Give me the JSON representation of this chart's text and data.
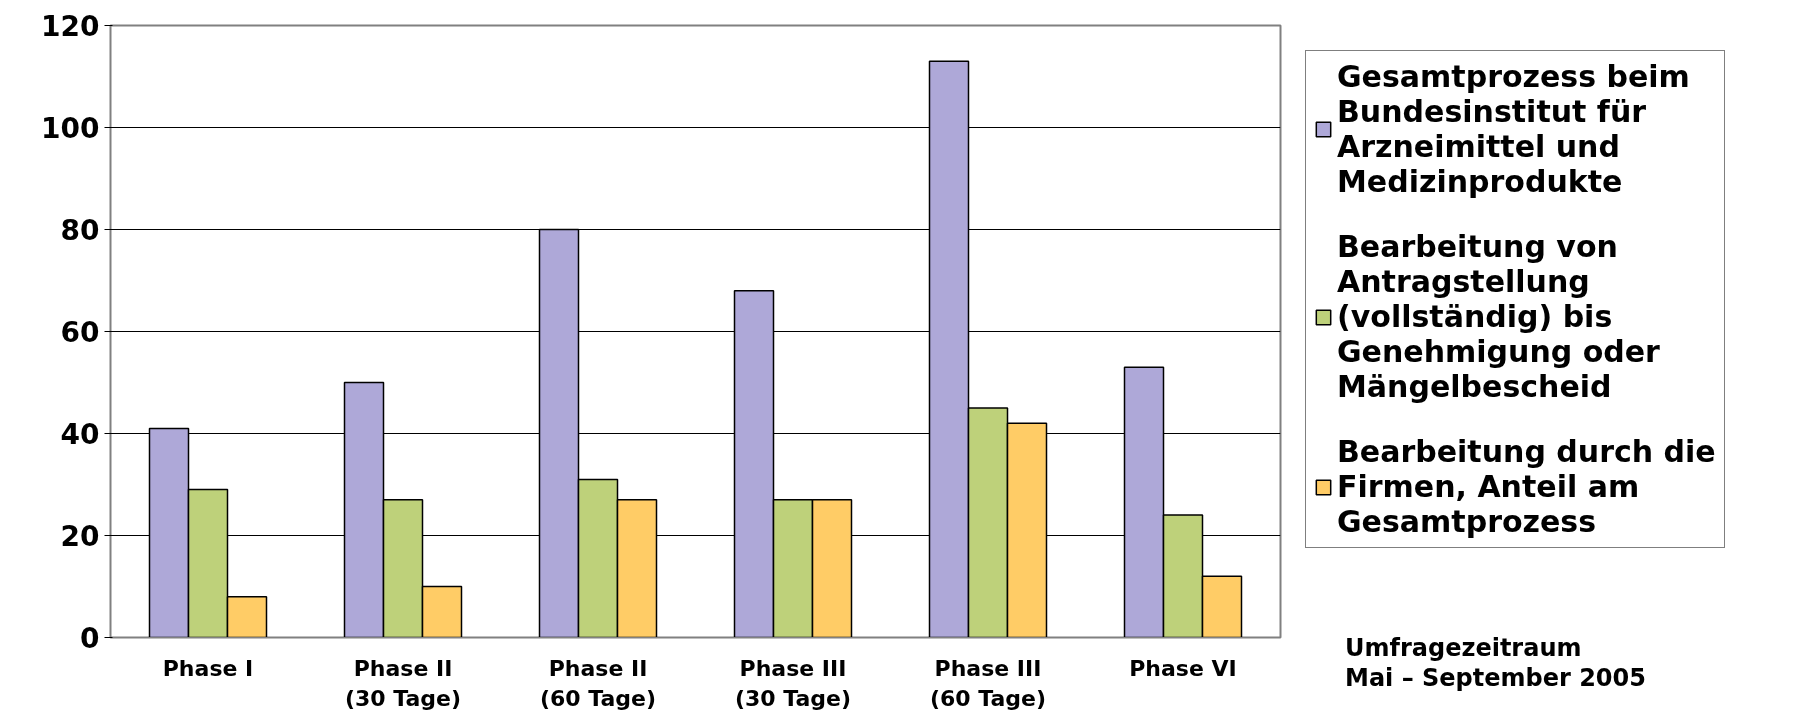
{
  "chart_data": {
    "type": "bar",
    "categories": [
      "Phase I",
      "Phase II\n(30 Tage)",
      "Phase II\n(60 Tage)",
      "Phase III\n(30 Tage)",
      "Phase III\n(60 Tage)",
      "Phase VI"
    ],
    "series": [
      {
        "name": "Gesamtprozess beim Bundesinstitut für Arzneimittel und Medizinprodukte",
        "color": "#aea8d8",
        "values": [
          41,
          50,
          80,
          68,
          113,
          53
        ]
      },
      {
        "name": "Bearbeitung von Antragstellung (vollständig) bis Genehmigung oder Mängelbescheid",
        "color": "#bed17a",
        "values": [
          29,
          27,
          31,
          27,
          45,
          24
        ]
      },
      {
        "name": "Bearbeitung durch die Firmen, Anteil am Gesamtprozess",
        "color": "#ffcc66",
        "values": [
          8,
          10,
          27,
          27,
          42,
          12
        ]
      }
    ],
    "ylim": [
      0,
      120
    ],
    "yticks": [
      0,
      20,
      40,
      60,
      80,
      100,
      120
    ],
    "grid": "y",
    "legend": "right",
    "annotations": [
      "Umfragezeitraum\nMai – September 2005"
    ]
  }
}
